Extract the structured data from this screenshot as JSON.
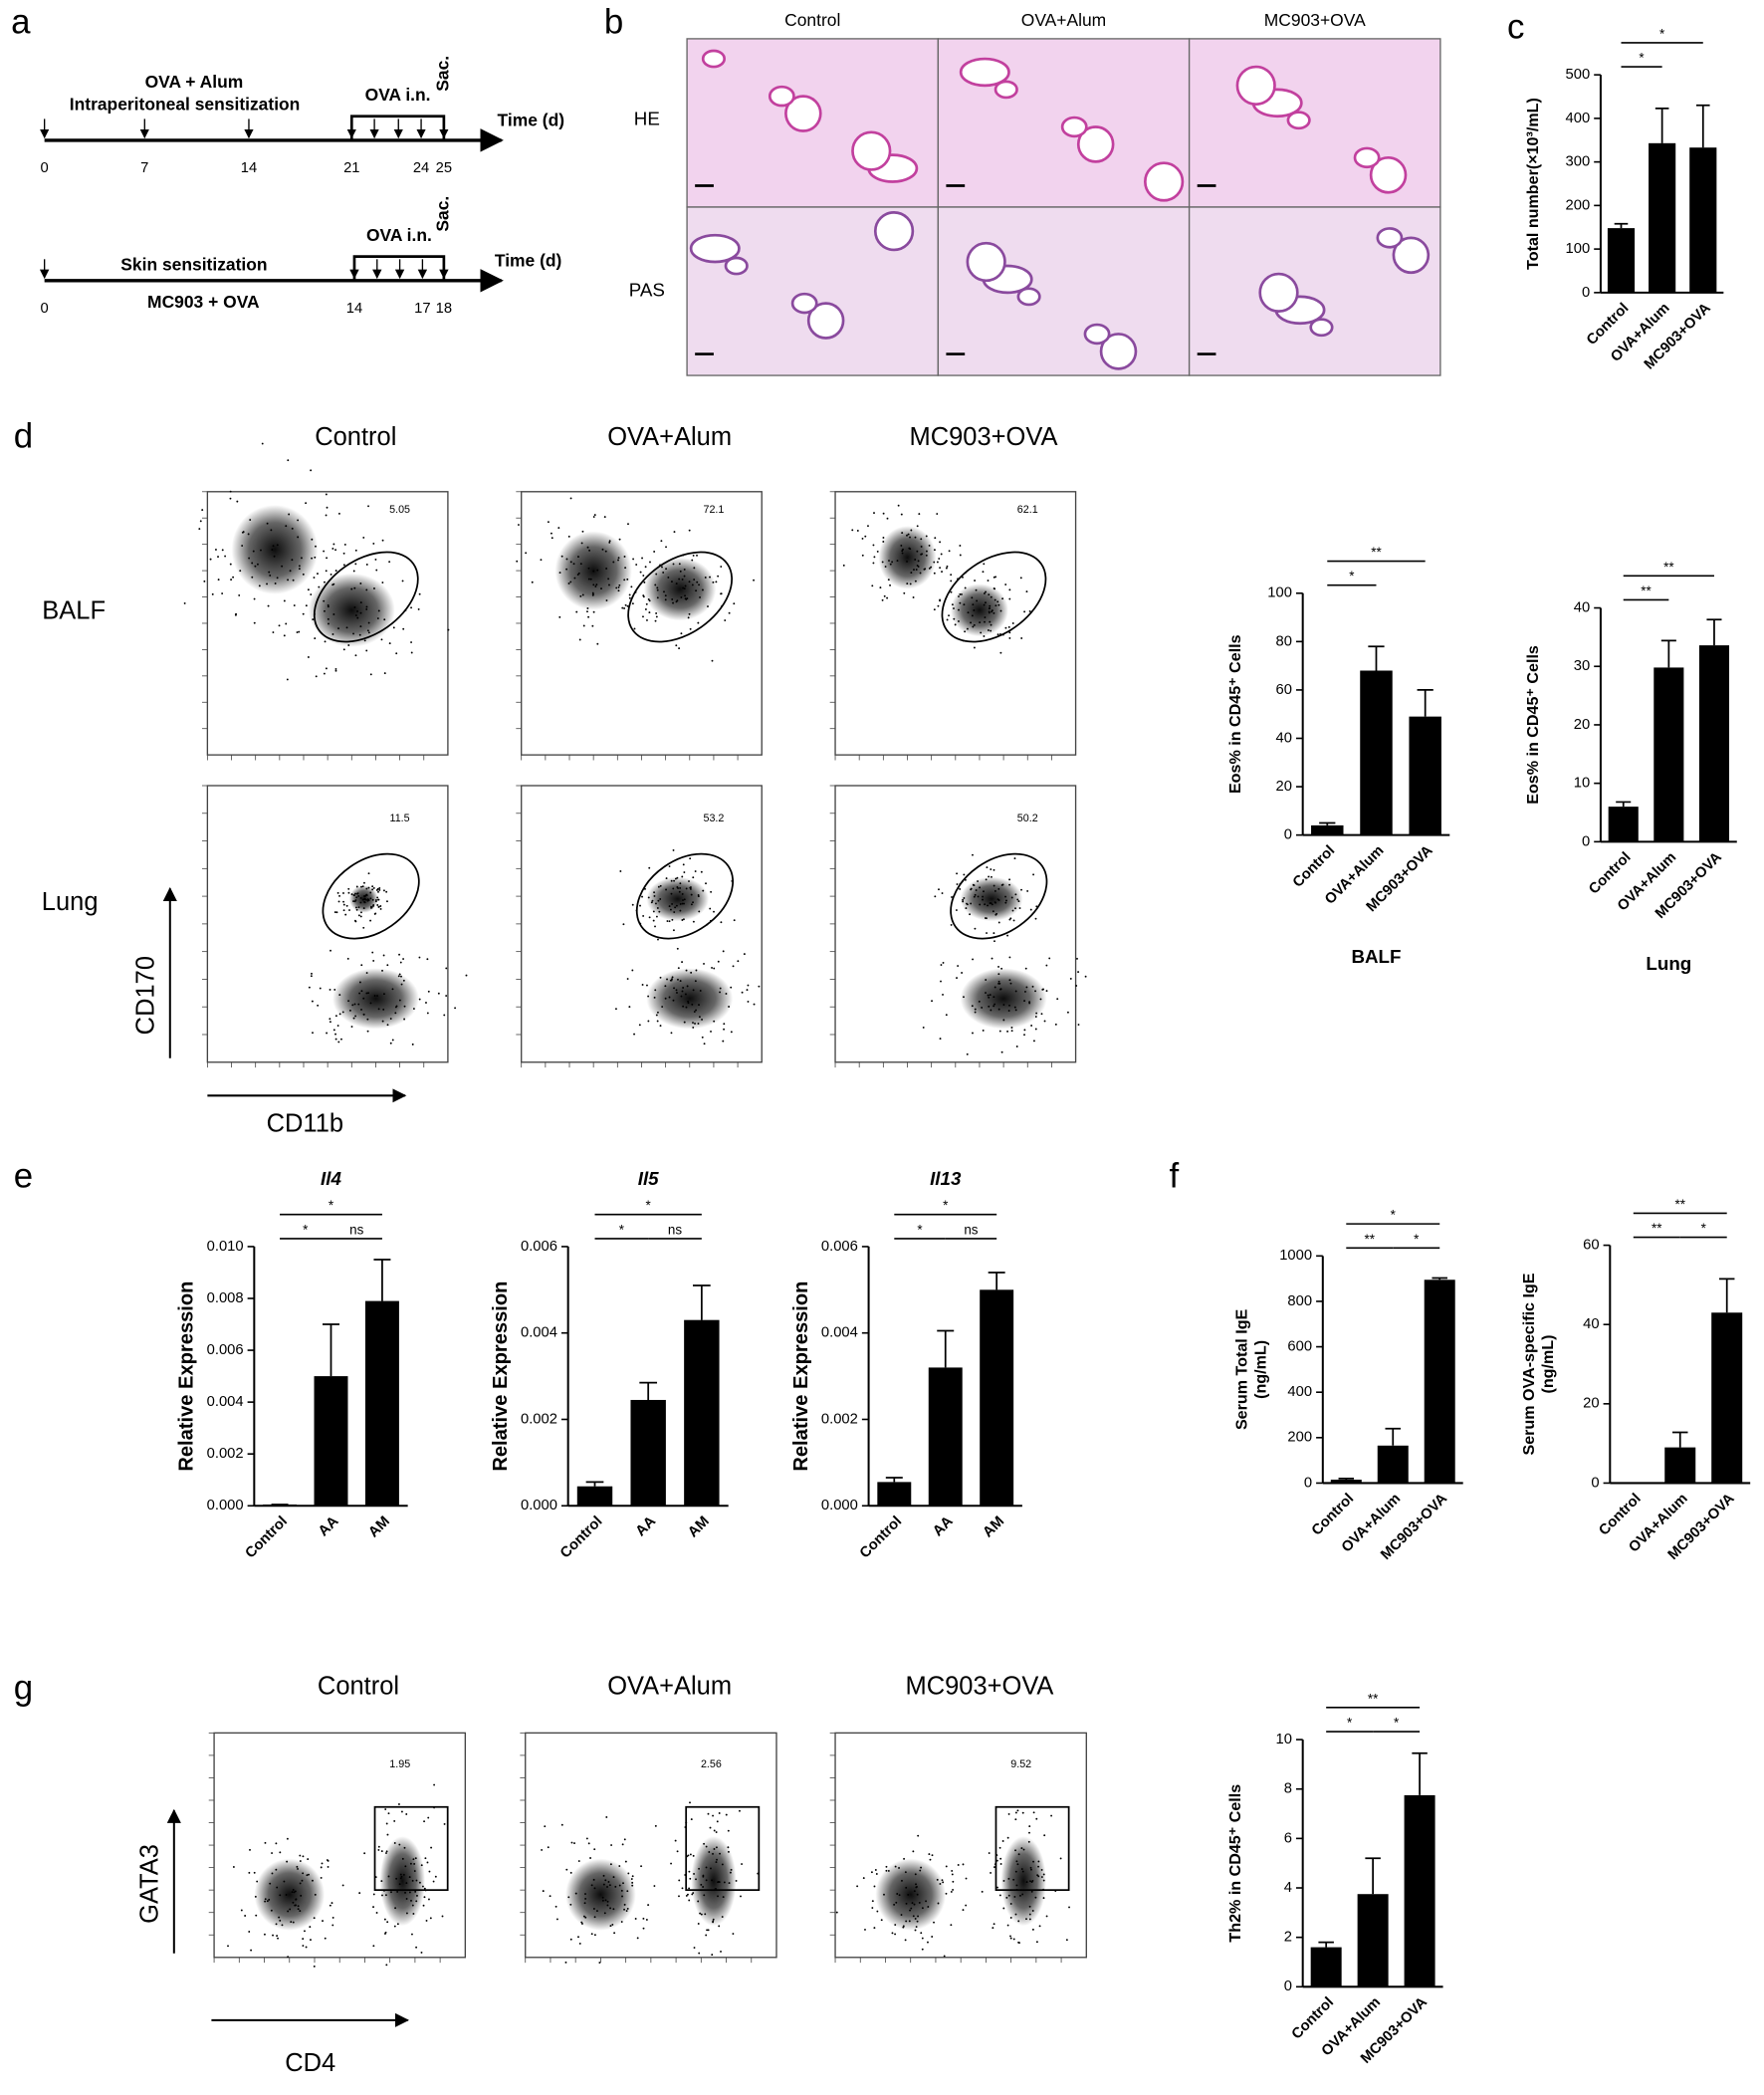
{
  "panel_labels": [
    "a",
    "b",
    "c",
    "d",
    "e",
    "f",
    "g"
  ],
  "timeline": {
    "ip": {
      "top_label": "OVA + Alum",
      "label": "Intraperitoneal sensitization",
      "challenge": "OVA i.n.",
      "end": "Sac.",
      "axis": "Time (d)",
      "days": [
        "0",
        "7",
        "14",
        "21",
        "24",
        "25"
      ]
    },
    "skin": {
      "label": "Skin sensitization",
      "bottom_label": "MC903 + OVA",
      "challenge": "OVA i.n.",
      "end": "Sac.",
      "axis": "Time (d)",
      "days": [
        "0",
        "14",
        "17",
        "18"
      ]
    }
  },
  "histology": {
    "columns": [
      "Control",
      "OVA+Alum",
      "MC903+OVA"
    ],
    "rows": [
      "HE",
      "PAS"
    ]
  },
  "flow_eos": {
    "columns": [
      "Control",
      "OVA+Alum",
      "MC903+OVA"
    ],
    "rows": [
      "BALF",
      "Lung"
    ],
    "gates": [
      [
        "5.05",
        "72.1",
        "62.1"
      ],
      [
        "11.5",
        "53.2",
        "50.2"
      ]
    ],
    "y_axis": "CD170",
    "x_axis": "CD11b"
  },
  "flow_th2": {
    "columns": [
      "Control",
      "OVA+Alum",
      "MC903+OVA"
    ],
    "gates": [
      "1.95",
      "2.56",
      "9.52"
    ],
    "y_axis": "GATA3",
    "x_axis": "CD4"
  },
  "chart_data": [
    {
      "type": "bar",
      "ylabel": [
        "Total number(×10³/mL)"
      ],
      "categories": [
        "Control",
        "OVA+Alum",
        "MC903+OVA"
      ],
      "values": [
        148,
        343,
        333
      ],
      "errors": [
        10,
        80,
        97
      ],
      "color": "#000000",
      "ylim": [
        0,
        500
      ],
      "yticks": [
        0,
        100,
        200,
        300,
        400,
        500
      ],
      "significance": [
        {
          "pair": [
            "Control",
            "OVA+Alum"
          ],
          "label": "*"
        },
        {
          "pair": [
            "Control",
            "MC903+OVA"
          ],
          "label": "*"
        }
      ]
    },
    {
      "type": "bar",
      "ylabel": [
        "Eos% in CD45⁺ Cells"
      ],
      "xlabel": "BALF",
      "categories": [
        "Control",
        "OVA+Alum",
        "MC903+OVA"
      ],
      "values": [
        4,
        68,
        49
      ],
      "errors": [
        1,
        10,
        11
      ],
      "color": "#000000",
      "ylim": [
        0,
        100
      ],
      "yticks": [
        0,
        20,
        40,
        60,
        80,
        100
      ],
      "significance": [
        {
          "pair": [
            "Control",
            "OVA+Alum"
          ],
          "label": "*"
        },
        {
          "pair": [
            "Control",
            "MC903+OVA"
          ],
          "label": "**"
        }
      ]
    },
    {
      "type": "bar",
      "ylabel": [
        "Eos% in CD45⁺ Cells"
      ],
      "xlabel": "Lung",
      "categories": [
        "Control",
        "OVA+Alum",
        "MC903+OVA"
      ],
      "values": [
        6,
        29.8,
        33.6
      ],
      "errors": [
        0.8,
        4.6,
        4.4
      ],
      "color": "#000000",
      "ylim": [
        0,
        40
      ],
      "yticks": [
        0,
        10,
        20,
        30,
        40
      ],
      "significance": [
        {
          "pair": [
            "Control",
            "OVA+Alum"
          ],
          "label": "**"
        },
        {
          "pair": [
            "Control",
            "MC903+OVA"
          ],
          "label": "**"
        }
      ]
    },
    {
      "type": "bar",
      "title": "Il4",
      "ylabel": [
        "Relative Expression"
      ],
      "categories": [
        "Control",
        "AA",
        "AM"
      ],
      "values": [
        5e-05,
        0.005,
        0.0079
      ],
      "errors": [
        0,
        0.002,
        0.0016
      ],
      "color": "#000000",
      "ylim": [
        0,
        0.01
      ],
      "yticks": [
        {
          "value": 0,
          "label": "0.000"
        },
        {
          "value": 0.002,
          "label": "0.002"
        },
        {
          "value": 0.004,
          "label": "0.004"
        },
        {
          "value": 0.006,
          "label": "0.006"
        },
        {
          "value": 0.008,
          "label": "0.008"
        },
        {
          "value": 0.01,
          "label": "0.010"
        }
      ],
      "significance": [
        {
          "pair": [
            "Control",
            "AA"
          ],
          "label": "*"
        },
        {
          "pair": [
            "AA",
            "AM"
          ],
          "label": "ns"
        },
        {
          "pair": [
            "Control",
            "AM"
          ],
          "label": "*"
        }
      ]
    },
    {
      "type": "bar",
      "title": "Il5",
      "ylabel": [
        "Relative Expression"
      ],
      "categories": [
        "Control",
        "AA",
        "AM"
      ],
      "values": [
        0.00045,
        0.00245,
        0.0043
      ],
      "errors": [
        0.0001,
        0.0004,
        0.0008
      ],
      "color": "#000000",
      "ylim": [
        0,
        0.006
      ],
      "yticks": [
        {
          "value": 0,
          "label": "0.000"
        },
        {
          "value": 0.002,
          "label": "0.002"
        },
        {
          "value": 0.004,
          "label": "0.004"
        },
        {
          "value": 0.006,
          "label": "0.006"
        }
      ],
      "significance": [
        {
          "pair": [
            "Control",
            "AA"
          ],
          "label": "*"
        },
        {
          "pair": [
            "AA",
            "AM"
          ],
          "label": "ns"
        },
        {
          "pair": [
            "Control",
            "AM"
          ],
          "label": "*"
        }
      ]
    },
    {
      "type": "bar",
      "title": "Il13",
      "ylabel": [
        "Relative Expression"
      ],
      "categories": [
        "Control",
        "AA",
        "AM"
      ],
      "values": [
        0.00055,
        0.0032,
        0.005
      ],
      "errors": [
        0.0001,
        0.00085,
        0.0004
      ],
      "color": "#000000",
      "ylim": [
        0,
        0.006
      ],
      "yticks": [
        {
          "value": 0,
          "label": "0.000"
        },
        {
          "value": 0.002,
          "label": "0.002"
        },
        {
          "value": 0.004,
          "label": "0.004"
        },
        {
          "value": 0.006,
          "label": "0.006"
        }
      ],
      "significance": [
        {
          "pair": [
            "Control",
            "AA"
          ],
          "label": "*"
        },
        {
          "pair": [
            "AA",
            "AM"
          ],
          "label": "ns"
        },
        {
          "pair": [
            "Control",
            "AM"
          ],
          "label": "*"
        }
      ]
    },
    {
      "type": "bar",
      "ylabel": [
        "Serum Total IgE",
        "(ng/mL)"
      ],
      "categories": [
        "Control",
        "OVA+Alum",
        "MC903+OVA"
      ],
      "values": [
        15,
        165,
        895
      ],
      "errors": [
        5,
        75,
        8
      ],
      "color": "#000000",
      "ylim": [
        0,
        1000
      ],
      "yticks": [
        0,
        200,
        400,
        600,
        800,
        1000
      ],
      "significance": [
        {
          "pair": [
            "Control",
            "OVA+Alum"
          ],
          "label": "**"
        },
        {
          "pair": [
            "OVA+Alum",
            "MC903+OVA"
          ],
          "label": "*"
        },
        {
          "pair": [
            "Control",
            "MC903+OVA"
          ],
          "label": "*"
        }
      ]
    },
    {
      "type": "bar",
      "ylabel": [
        "Serum OVA-specific IgE",
        "(ng/mL)"
      ],
      "categories": [
        "Control",
        "OVA+Alum",
        "MC903+OVA"
      ],
      "values": [
        0,
        9,
        43
      ],
      "errors": [
        0,
        3.8,
        8.5
      ],
      "color": "#000000",
      "ylim": [
        0,
        60
      ],
      "yticks": [
        0,
        20,
        40,
        60
      ],
      "significance": [
        {
          "pair": [
            "Control",
            "OVA+Alum"
          ],
          "label": "**"
        },
        {
          "pair": [
            "OVA+Alum",
            "MC903+OVA"
          ],
          "label": "*"
        },
        {
          "pair": [
            "Control",
            "MC903+OVA"
          ],
          "label": "**"
        }
      ]
    },
    {
      "type": "bar",
      "ylabel": [
        "Th2% in CD45⁺ Cells"
      ],
      "categories": [
        "Control",
        "OVA+Alum",
        "MC903+OVA"
      ],
      "values": [
        1.6,
        3.75,
        7.75
      ],
      "errors": [
        0.2,
        1.45,
        1.7
      ],
      "color": "#000000",
      "ylim": [
        0,
        10
      ],
      "yticks": [
        0,
        2,
        4,
        6,
        8,
        10
      ],
      "significance": [
        {
          "pair": [
            "Control",
            "OVA+Alum"
          ],
          "label": "*"
        },
        {
          "pair": [
            "OVA+Alum",
            "MC903+OVA"
          ],
          "label": "*"
        },
        {
          "pair": [
            "Control",
            "MC903+OVA"
          ],
          "label": "**"
        }
      ]
    }
  ]
}
